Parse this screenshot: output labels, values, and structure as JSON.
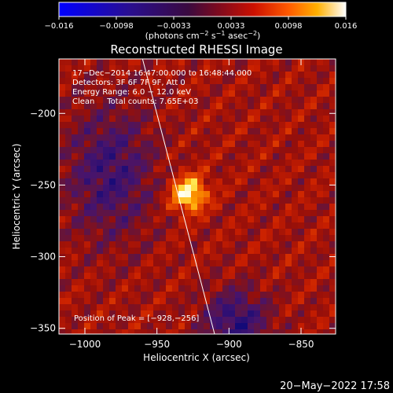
{
  "colorbar": {
    "ticks": [
      "−0.016",
      "−0.0098",
      "−0.0033",
      "0.0033",
      "0.0098",
      "0.016"
    ],
    "unit_main": "(photons cm",
    "unit_exp1": "−2",
    "unit_mid": " s",
    "unit_exp2": "−1",
    "unit_tail": " asec",
    "unit_exp3": "−2",
    "unit_close": ")"
  },
  "title": "Reconstructed RHESSI Image",
  "info_lines": [
    "17−Dec−2014 16:47:00.000 to 16:48:44.000",
    "Detectors: 3F 6F 7F 9F, Att 0",
    "Energy Range: 6.0 − 12.0 keV",
    "Clean     Total counts: 7.65E+03"
  ],
  "peak_label": "Position of Peak = [−928,−256]",
  "footer_date": "20−May−2022 17:58",
  "chart_data": {
    "type": "heatmap",
    "title": "Reconstructed RHESSI Image",
    "xlabel": "Heliocentric X (arcsec)",
    "ylabel": "Heliocentric Y (arcsec)",
    "xlim": [
      -1018,
      -826
    ],
    "ylim": [
      -354,
      -162
    ],
    "xticks": [
      -1000,
      -950,
      -900,
      -850
    ],
    "xtick_labels": [
      "−1000",
      "−950",
      "−900",
      "−850"
    ],
    "yticks": [
      -200,
      -250,
      -300,
      -350
    ],
    "ytick_labels": [
      "−200",
      "−250",
      "−300",
      "−350"
    ],
    "color_range": [
      -0.016,
      0.016
    ],
    "colormap": "blue-purple-red-yellow-white",
    "peak": {
      "x": -928,
      "y": -256,
      "value": 0.016
    },
    "limb_line": [
      [
        -960,
        -162
      ],
      [
        -910,
        -354
      ]
    ]
  },
  "colors": {
    "background": "#000000",
    "text": "#ffffff",
    "limb": "#ffffff"
  }
}
